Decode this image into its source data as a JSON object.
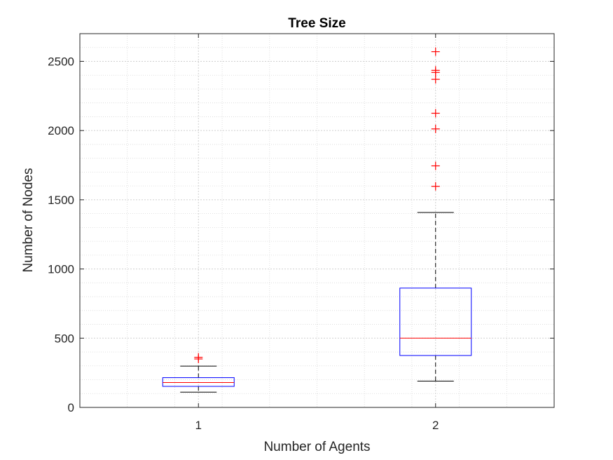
{
  "chart_data": {
    "type": "boxplot",
    "title": "Tree Size",
    "xlabel": "Number of Agents",
    "ylabel": "Number of Nodes",
    "categories": [
      "1",
      "2"
    ],
    "ylim": [
      0,
      2700
    ],
    "yticks": [
      0,
      500,
      1000,
      1500,
      2000,
      2500
    ],
    "grid": true,
    "minor_grid": true,
    "boxes": [
      {
        "category": "1",
        "lower_whisker": 110,
        "q1": 152,
        "median": 180,
        "q3": 215,
        "upper_whisker": 298,
        "outliers": [
          350,
          362
        ]
      },
      {
        "category": "2",
        "lower_whisker": 190,
        "q1": 375,
        "median": 500,
        "q3": 862,
        "upper_whisker": 1408,
        "outliers": [
          1597,
          1745,
          2012,
          2125,
          2370,
          2420,
          2435,
          2570
        ]
      }
    ],
    "colors": {
      "box": "#0000ff",
      "median": "#ff0000",
      "outlier": "#ff0000",
      "whisker": "#000000",
      "grid": "#d7d7d7"
    }
  }
}
